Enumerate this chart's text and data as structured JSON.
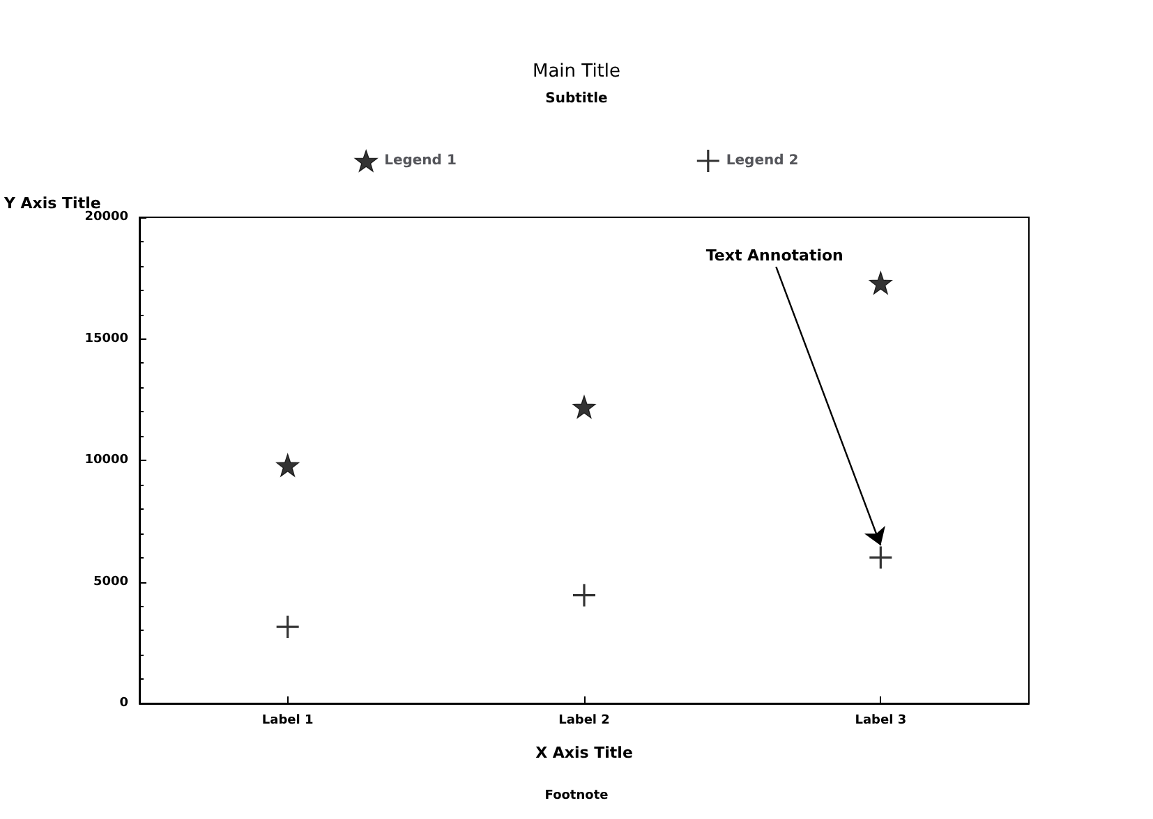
{
  "chart_data": {
    "type": "scatter",
    "title": "Main Title",
    "subtitle": "Subtitle",
    "xlabel": "X Axis Title",
    "ylabel": "Y Axis Title",
    "categories": [
      "Label 1",
      "Label 2",
      "Label 3"
    ],
    "series": [
      {
        "name": "Legend 1",
        "color": "#000000",
        "marker": "star",
        "values": [
          9800,
          12200,
          17300
        ]
      },
      {
        "name": "Legend 2",
        "color": "#000000",
        "marker": "cross",
        "values": [
          3150,
          4450,
          6000
        ]
      }
    ],
    "ylim": [
      0,
      20000
    ],
    "yticks": [
      0,
      5000,
      10000,
      15000,
      20000
    ],
    "grid": false,
    "legend": "top",
    "annotations": [
      {
        "text": "Text Annotation",
        "x": "Label 3",
        "y": 6500
      },
      "Footnote"
    ]
  }
}
